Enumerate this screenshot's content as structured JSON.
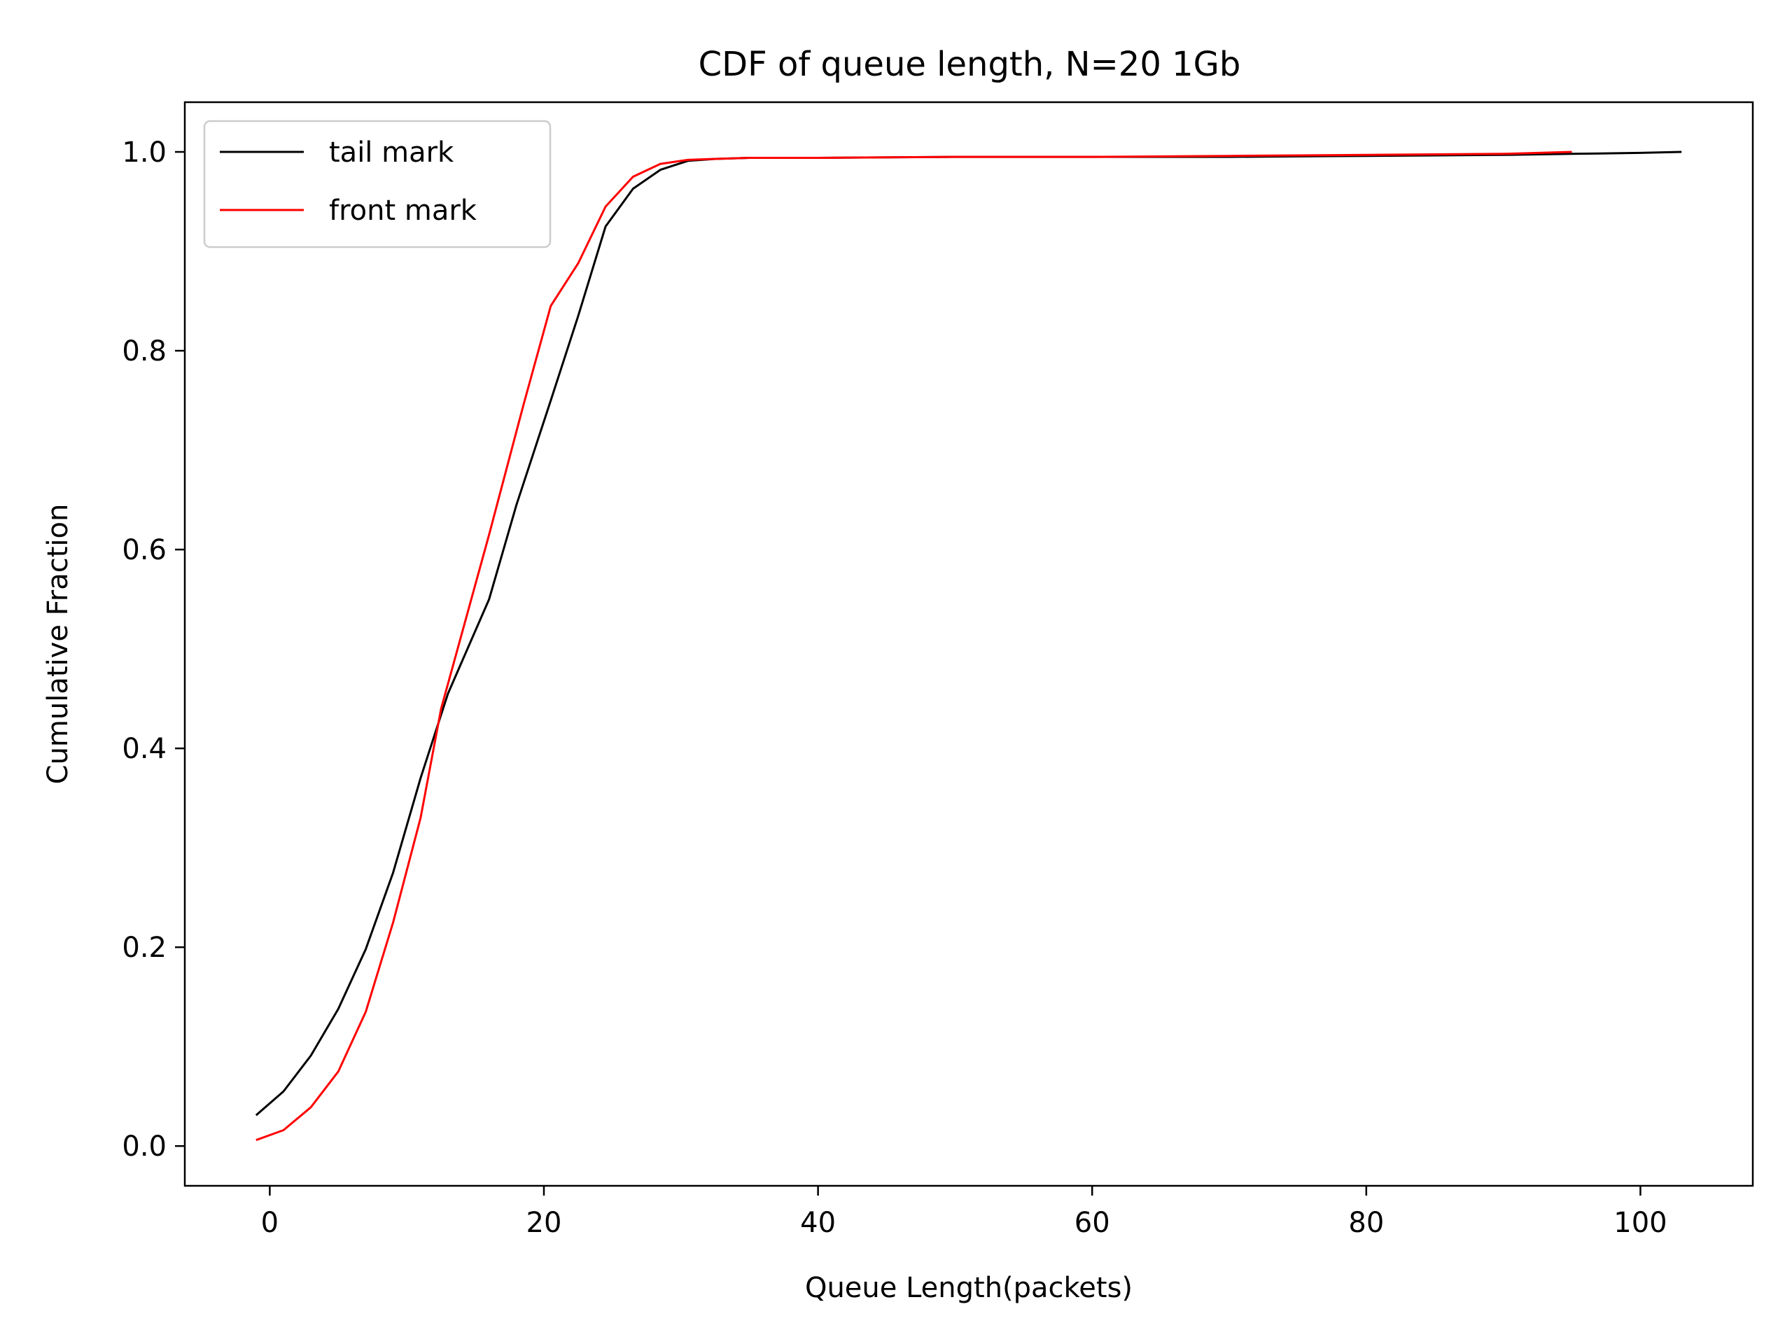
{
  "chart_data": {
    "type": "line",
    "title": "CDF of queue length, N=20 1Gb",
    "xlabel": "Queue Length(packets)",
    "ylabel": "Cumulative Fraction",
    "xlim": [
      -6.2,
      108.2
    ],
    "ylim": [
      -0.04,
      1.05
    ],
    "xticks": [
      0,
      20,
      40,
      60,
      80,
      100
    ],
    "yticks": [
      0.0,
      0.2,
      0.4,
      0.6,
      0.8,
      1.0
    ],
    "xtick_labels": [
      "0",
      "20",
      "40",
      "60",
      "80",
      "100"
    ],
    "ytick_labels": [
      "0.0",
      "0.2",
      "0.4",
      "0.6",
      "0.8",
      "1.0"
    ],
    "grid": false,
    "legend_position": "top-left",
    "series": [
      {
        "name": "tail mark",
        "color": "#000000",
        "x": [
          -1,
          1,
          3,
          5,
          7,
          9,
          11,
          13,
          16,
          18,
          20.5,
          22.5,
          24.5,
          26.5,
          28.5,
          30.5,
          32.5,
          35,
          40,
          50,
          60,
          70,
          80,
          90,
          95,
          100,
          103
        ],
        "y": [
          0.031,
          0.055,
          0.091,
          0.138,
          0.198,
          0.275,
          0.37,
          0.455,
          0.55,
          0.645,
          0.75,
          0.835,
          0.925,
          0.963,
          0.982,
          0.991,
          0.993,
          0.994,
          0.994,
          0.995,
          0.995,
          0.995,
          0.996,
          0.997,
          0.998,
          0.999,
          1.0
        ]
      },
      {
        "name": "front mark",
        "color": "#ff0000",
        "x": [
          -1,
          1,
          3,
          5,
          7,
          9,
          11,
          12.5,
          16,
          18.5,
          20.5,
          22.5,
          24.5,
          26.5,
          28.5,
          30.5,
          32.5,
          35,
          40,
          50,
          60,
          70,
          80,
          90,
          95
        ],
        "y": [
          0.006,
          0.016,
          0.039,
          0.075,
          0.135,
          0.225,
          0.33,
          0.44,
          0.615,
          0.745,
          0.845,
          0.888,
          0.945,
          0.975,
          0.988,
          0.992,
          0.993,
          0.994,
          0.994,
          0.995,
          0.995,
          0.996,
          0.997,
          0.998,
          1.0
        ]
      }
    ]
  }
}
